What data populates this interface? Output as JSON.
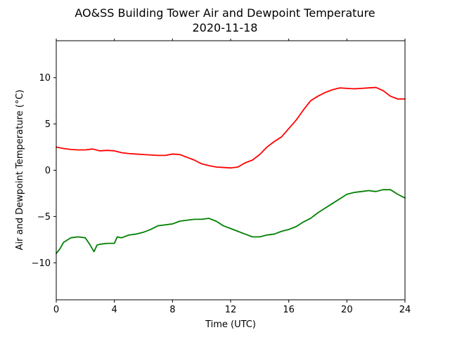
{
  "chart_data": {
    "type": "line",
    "title": "AO&SS Building Tower Air and Dewpoint Temperature",
    "subtitle": "2020-11-18",
    "xlabel": "Time (UTC)",
    "ylabel": "Air and Dewpoint Temperature (°C)",
    "xlim": [
      0,
      24
    ],
    "ylim": [
      -14,
      14
    ],
    "xticks": [
      0,
      4,
      8,
      12,
      16,
      20,
      24
    ],
    "yticks": [
      -10,
      -5,
      0,
      5,
      10
    ],
    "grid": false,
    "series": [
      {
        "color": "#ff0000",
        "x": [
          0,
          0.5,
          1,
          1.5,
          2,
          2.5,
          3,
          3.5,
          4,
          4.5,
          5,
          5.5,
          6,
          6.5,
          7,
          7.5,
          8,
          8.5,
          9,
          9.5,
          10,
          10.5,
          11,
          11.5,
          12,
          12.5,
          13,
          13.5,
          14,
          14.5,
          15,
          15.5,
          16,
          16.5,
          17,
          17.5,
          18,
          18.5,
          19,
          19.5,
          20,
          20.5,
          21,
          21.5,
          22,
          22.5,
          23,
          23.5,
          24
        ],
        "y": [
          2.5,
          2.35,
          2.25,
          2.2,
          2.2,
          2.3,
          2.1,
          2.15,
          2.1,
          1.9,
          1.8,
          1.75,
          1.7,
          1.65,
          1.6,
          1.6,
          1.75,
          1.7,
          1.4,
          1.1,
          0.7,
          0.5,
          0.35,
          0.3,
          0.25,
          0.35,
          0.8,
          1.1,
          1.7,
          2.5,
          3.1,
          3.6,
          4.5,
          5.4,
          6.5,
          7.5,
          8.0,
          8.4,
          8.7,
          8.9,
          8.85,
          8.8,
          8.85,
          8.9,
          8.95,
          8.6,
          8.0,
          7.7,
          7.7
        ]
      },
      {
        "color": "#008000",
        "x": [
          0,
          0.25,
          0.5,
          1,
          1.5,
          2,
          2.3,
          2.6,
          2.8,
          3,
          3.5,
          4,
          4.2,
          4.5,
          5,
          5.5,
          6,
          6.5,
          7,
          7.5,
          8,
          8.5,
          9,
          9.5,
          10,
          10.5,
          11,
          11.5,
          12,
          12.5,
          13,
          13.5,
          14,
          14.5,
          15,
          15.5,
          16,
          16.5,
          17,
          17.5,
          18,
          18.5,
          19,
          19.5,
          20,
          20.5,
          21,
          21.5,
          22,
          22.5,
          23,
          23.5,
          24
        ],
        "y": [
          -9.0,
          -8.5,
          -7.8,
          -7.3,
          -7.2,
          -7.3,
          -8.0,
          -8.8,
          -8.1,
          -8.0,
          -7.9,
          -7.9,
          -7.2,
          -7.3,
          -7.0,
          -6.9,
          -6.7,
          -6.4,
          -6.0,
          -5.9,
          -5.8,
          -5.5,
          -5.4,
          -5.3,
          -5.3,
          -5.2,
          -5.5,
          -6.0,
          -6.3,
          -6.6,
          -6.9,
          -7.2,
          -7.2,
          -7.0,
          -6.9,
          -6.6,
          -6.4,
          -6.1,
          -5.6,
          -5.2,
          -4.6,
          -4.1,
          -3.6,
          -3.1,
          -2.6,
          -2.4,
          -2.3,
          -2.2,
          -2.3,
          -2.1,
          -2.1,
          -2.6,
          -3.0
        ]
      }
    ]
  }
}
